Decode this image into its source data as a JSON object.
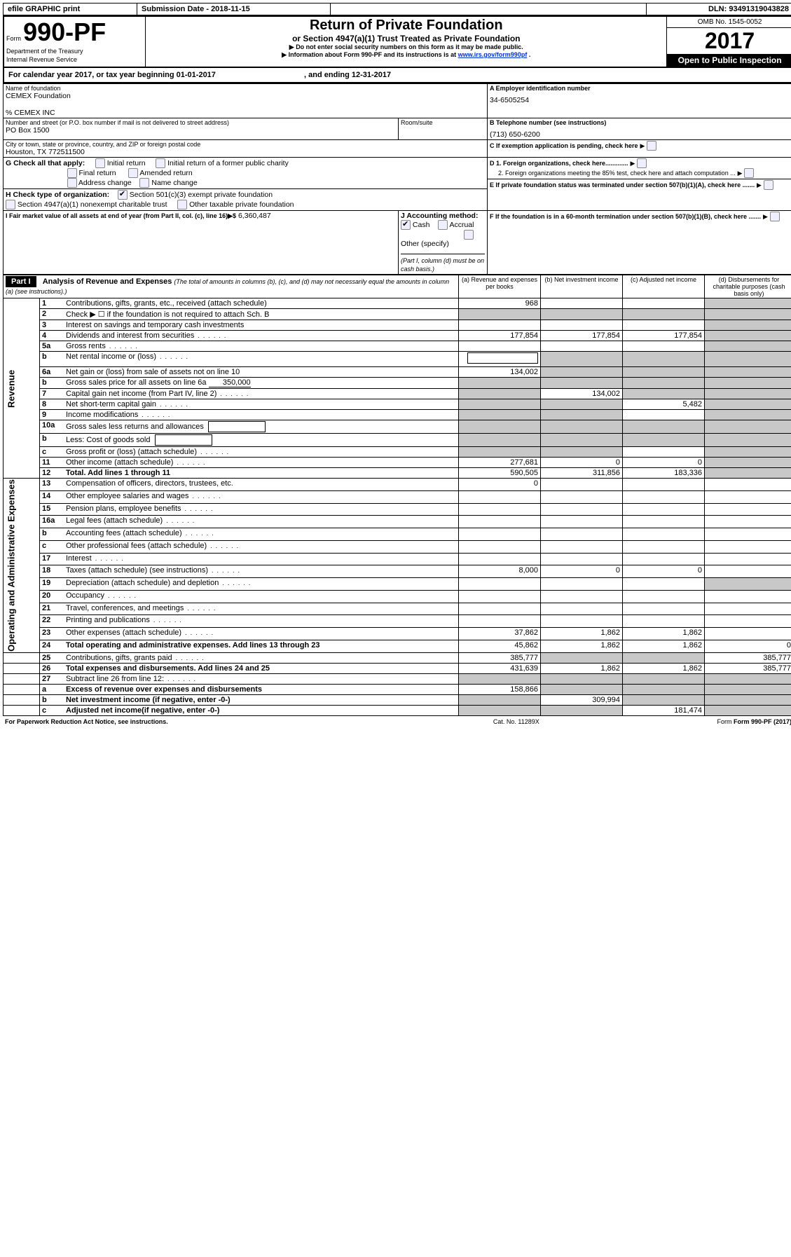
{
  "topbar": {
    "efile": "efile GRAPHIC print",
    "submission_label": "Submission Date - 2018-11-15",
    "dln": "DLN: 93491319043828"
  },
  "header": {
    "form_prefix": "Form",
    "form_number": "990-PF",
    "dept": "Department of the Treasury",
    "irs": "Internal Revenue Service",
    "title": "Return of Private Foundation",
    "subtitle": "or Section 4947(a)(1) Trust Treated as Private Foundation",
    "warn1": "▶ Do not enter social security numbers on this form as it may be made public.",
    "warn2_pre": "▶ Information about Form 990-PF and its instructions is at ",
    "warn2_link": "www.irs.gov/form990pf",
    "warn2_post": ".",
    "omb": "OMB No. 1545-0052",
    "year": "2017",
    "open_public": "Open to Public Inspection"
  },
  "period": {
    "line": "For calendar year 2017, or tax year beginning 01-01-2017",
    "ending": ", and ending 12-31-2017"
  },
  "org": {
    "name_label": "Name of foundation",
    "name": "CEMEX Foundation",
    "care_of": "% CEMEX INC",
    "street_label": "Number and street (or P.O. box number if mail is not delivered to street address)",
    "street": "PO Box 1500",
    "room_label": "Room/suite",
    "city_label": "City or town, state or province, country, and ZIP or foreign postal code",
    "city": "Houston, TX 772511500",
    "ein_label": "A Employer identification number",
    "ein": "34-6505254",
    "tel_label": "B Telephone number (see instructions)",
    "tel": "(713) 650-6200",
    "c_label": "C If exemption application is pending, check here",
    "d1_label": "D 1. Foreign organizations, check here.............",
    "d2_label": "2. Foreign organizations meeting the 85% test, check here and attach computation ...",
    "e_label": "E If private foundation status was terminated under section 507(b)(1)(A), check here .......",
    "f_label": "F If the foundation is in a 60-month termination under section 507(b)(1)(B), check here .......",
    "g_label": "G Check all that apply:",
    "g_opts": [
      "Initial return",
      "Initial return of a former public charity",
      "Final return",
      "Amended return",
      "Address change",
      "Name change"
    ],
    "h_label": "H Check type of organization:",
    "h_opt1": "Section 501(c)(3) exempt private foundation",
    "h_opt2": "Section 4947(a)(1) nonexempt charitable trust",
    "h_opt3": "Other taxable private foundation",
    "i_label": "I Fair market value of all assets at end of year (from Part II, col. (c), line 16)▶$",
    "i_value": "6,360,487",
    "j_label": "J Accounting method:",
    "j_cash": "Cash",
    "j_accrual": "Accrual",
    "j_other": "Other (specify)",
    "j_note": "(Part I, column (d) must be on cash basis.)"
  },
  "part1": {
    "label": "Part I",
    "title": "Analysis of Revenue and Expenses",
    "title_note": "(The total of amounts in columns (b), (c), and (d) may not necessarily equal the amounts in column (a) (see instructions).)",
    "col_a": "(a)  Revenue and expenses per books",
    "col_b": "(b)  Net investment income",
    "col_c": "(c)  Adjusted net income",
    "col_d": "(d)  Disbursements for charitable purposes (cash basis only)",
    "side_rev": "Revenue",
    "side_exp": "Operating and Administrative Expenses"
  },
  "rows": [
    {
      "n": "1",
      "label": "Contributions, gifts, grants, etc., received (attach schedule)",
      "a": "968",
      "b": "",
      "c": "",
      "d": "shade"
    },
    {
      "n": "2",
      "label": "Check ▶ ☐ if the foundation is not required to attach Sch. B",
      "a": "shade",
      "b": "shade",
      "c": "shade",
      "d": "shade",
      "bold_not": true
    },
    {
      "n": "3",
      "label": "Interest on savings and temporary cash investments",
      "a": "",
      "b": "",
      "c": "",
      "d": "shade"
    },
    {
      "n": "4",
      "label": "Dividends and interest from securities",
      "a": "177,854",
      "b": "177,854",
      "c": "177,854",
      "d": "shade"
    },
    {
      "n": "5a",
      "label": "Gross rents",
      "a": "",
      "b": "",
      "c": "",
      "d": "shade"
    },
    {
      "n": "b",
      "label": "Net rental income or (loss)",
      "a": "box",
      "b": "shade",
      "c": "shade",
      "d": "shade"
    },
    {
      "n": "6a",
      "label": "Net gain or (loss) from sale of assets not on line 10",
      "a": "134,002",
      "b": "shade",
      "c": "shade",
      "d": "shade"
    },
    {
      "n": "b",
      "label": "Gross sales price for all assets on line 6a",
      "a": "shade",
      "b": "shade",
      "c": "shade",
      "d": "shade",
      "inline_val": "350,000"
    },
    {
      "n": "7",
      "label": "Capital gain net income (from Part IV, line 2)",
      "a": "shade",
      "b": "134,002",
      "c": "shade",
      "d": "shade"
    },
    {
      "n": "8",
      "label": "Net short-term capital gain",
      "a": "shade",
      "b": "shade",
      "c": "5,482",
      "d": "shade"
    },
    {
      "n": "9",
      "label": "Income modifications",
      "a": "shade",
      "b": "shade",
      "c": "",
      "d": "shade"
    },
    {
      "n": "10a",
      "label": "Gross sales less returns and allowances",
      "a": "shade",
      "b": "shade",
      "c": "shade",
      "d": "shade",
      "box": true
    },
    {
      "n": "b",
      "label": "Less: Cost of goods sold",
      "a": "shade",
      "b": "shade",
      "c": "shade",
      "d": "shade",
      "box": true
    },
    {
      "n": "c",
      "label": "Gross profit or (loss) (attach schedule)",
      "a": "shade",
      "b": "shade",
      "c": "",
      "d": "shade"
    },
    {
      "n": "11",
      "label": "Other income (attach schedule)",
      "a": "277,681",
      "b": "0",
      "c": "0",
      "d": "shade"
    },
    {
      "n": "12",
      "label": "Total. Add lines 1 through 11",
      "a": "590,505",
      "b": "311,856",
      "c": "183,336",
      "d": "shade",
      "bold": true
    },
    {
      "n": "13",
      "label": "Compensation of officers, directors, trustees, etc.",
      "a": "0",
      "b": "",
      "c": "",
      "d": ""
    },
    {
      "n": "14",
      "label": "Other employee salaries and wages",
      "a": "",
      "b": "",
      "c": "",
      "d": ""
    },
    {
      "n": "15",
      "label": "Pension plans, employee benefits",
      "a": "",
      "b": "",
      "c": "",
      "d": ""
    },
    {
      "n": "16a",
      "label": "Legal fees (attach schedule)",
      "a": "",
      "b": "",
      "c": "",
      "d": ""
    },
    {
      "n": "b",
      "label": "Accounting fees (attach schedule)",
      "a": "",
      "b": "",
      "c": "",
      "d": ""
    },
    {
      "n": "c",
      "label": "Other professional fees (attach schedule)",
      "a": "",
      "b": "",
      "c": "",
      "d": ""
    },
    {
      "n": "17",
      "label": "Interest",
      "a": "",
      "b": "",
      "c": "",
      "d": ""
    },
    {
      "n": "18",
      "label": "Taxes (attach schedule) (see instructions)",
      "a": "8,000",
      "b": "0",
      "c": "0",
      "d": ""
    },
    {
      "n": "19",
      "label": "Depreciation (attach schedule) and depletion",
      "a": "",
      "b": "",
      "c": "",
      "d": "shade"
    },
    {
      "n": "20",
      "label": "Occupancy",
      "a": "",
      "b": "",
      "c": "",
      "d": ""
    },
    {
      "n": "21",
      "label": "Travel, conferences, and meetings",
      "a": "",
      "b": "",
      "c": "",
      "d": ""
    },
    {
      "n": "22",
      "label": "Printing and publications",
      "a": "",
      "b": "",
      "c": "",
      "d": ""
    },
    {
      "n": "23",
      "label": "Other expenses (attach schedule)",
      "a": "37,862",
      "b": "1,862",
      "c": "1,862",
      "d": ""
    },
    {
      "n": "24",
      "label": "Total operating and administrative expenses. Add lines 13 through 23",
      "a": "45,862",
      "b": "1,862",
      "c": "1,862",
      "d": "0",
      "bold": true
    },
    {
      "n": "25",
      "label": "Contributions, gifts, grants paid",
      "a": "385,777",
      "b": "shade",
      "c": "shade",
      "d": "385,777"
    },
    {
      "n": "26",
      "label": "Total expenses and disbursements. Add lines 24 and 25",
      "a": "431,639",
      "b": "1,862",
      "c": "1,862",
      "d": "385,777",
      "bold": true
    },
    {
      "n": "27",
      "label": "Subtract line 26 from line 12:",
      "a": "shade",
      "b": "shade",
      "c": "shade",
      "d": "shade"
    },
    {
      "n": "a",
      "label": "Excess of revenue over expenses and disbursements",
      "a": "158,866",
      "b": "shade",
      "c": "shade",
      "d": "shade",
      "bold": true
    },
    {
      "n": "b",
      "label": "Net investment income (if negative, enter -0-)",
      "a": "shade",
      "b": "309,994",
      "c": "shade",
      "d": "shade",
      "bold": true
    },
    {
      "n": "c",
      "label": "Adjusted net income(if negative, enter -0-)",
      "a": "shade",
      "b": "shade",
      "c": "181,474",
      "d": "shade",
      "bold": true
    }
  ],
  "footer": {
    "left": "For Paperwork Reduction Act Notice, see instructions.",
    "mid": "Cat. No. 11289X",
    "right": "Form 990-PF (2017)"
  },
  "style": {
    "shaded_color": "#c8c8c8"
  }
}
